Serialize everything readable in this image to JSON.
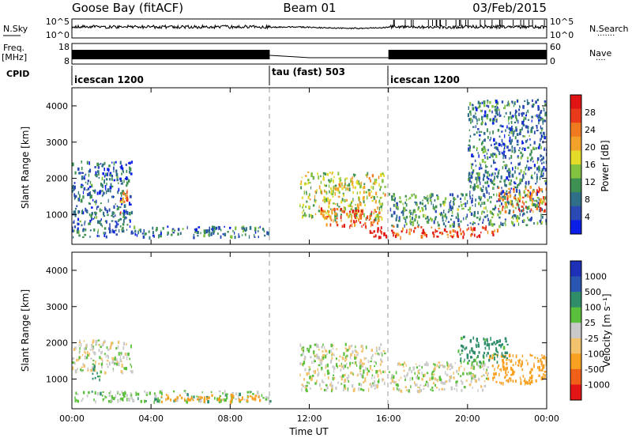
{
  "header": {
    "station": "Goose Bay (fitACF)",
    "beam": "Beam 01",
    "date": "03/Feb/2015"
  },
  "noise_panel": {
    "left_label": "N.Sky",
    "right_label": "N.Search",
    "right_dots": "·······",
    "left_ticks": [
      "10^5",
      "10^0"
    ],
    "right_ticks": [
      "10^5",
      "10^0"
    ]
  },
  "freq_panel": {
    "left_label_line1": "Freq.",
    "left_label_line2": "[MHz]",
    "right_label": "Nave",
    "right_dots": "····",
    "left_ticks": [
      "18",
      "8"
    ],
    "right_ticks": [
      "60",
      "0"
    ]
  },
  "cpid_panel": {
    "label": "CPID",
    "segments": [
      {
        "start": "00:00",
        "end": "10:00",
        "name": "icescan 1200"
      },
      {
        "start": "10:00",
        "end": "16:00",
        "name": "tau (fast) 503"
      },
      {
        "start": "16:00",
        "end": "24:00",
        "name": "icescan 1200"
      }
    ]
  },
  "colors": {
    "power_scale": [
      "#0b1ee8",
      "#2b49b4",
      "#2f6f87",
      "#3e9152",
      "#83c240",
      "#e3da2a",
      "#f2a12a",
      "#f07a1f",
      "#ea3a1c",
      "#e01414"
    ],
    "velocity_scale": [
      "#e41515",
      "#f06018",
      "#f7a021",
      "#f2c26d",
      "#c9c9c9",
      "#5abf3a",
      "#2f8d6a",
      "#2a55b0",
      "#1e2fb8"
    ]
  },
  "chart_data": [
    {
      "type": "heatmap",
      "title": "Power",
      "ylabel": "Slant Range [km]",
      "xlim": [
        "00:00",
        "24:00"
      ],
      "ylim": [
        180,
        4500
      ],
      "yticks": [
        "1000",
        "2000",
        "3000",
        "4000"
      ],
      "colorbar": {
        "label": "Power [dB]",
        "ticks": [
          "28",
          "24",
          "20",
          "16",
          "12",
          "8",
          "4"
        ]
      },
      "scatter_regions": [
        {
          "t_start": 0.0,
          "t_end": 10.0,
          "range_min": 400,
          "range_max": 700,
          "level": 6
        },
        {
          "t_start": 0.0,
          "t_end": 3.0,
          "range_min": 700,
          "range_max": 2500,
          "level": 5
        },
        {
          "t_start": 2.4,
          "t_end": 2.8,
          "range_min": 1000,
          "range_max": 1700,
          "level": 20
        },
        {
          "t_start": 11.5,
          "t_end": 15.8,
          "range_min": 900,
          "range_max": 2200,
          "level": 14
        },
        {
          "t_start": 12.5,
          "t_end": 15.5,
          "range_min": 700,
          "range_max": 1200,
          "level": 22
        },
        {
          "t_start": 15.0,
          "t_end": 16.0,
          "range_min": 400,
          "range_max": 700,
          "level": 28
        },
        {
          "t_start": 16.0,
          "t_end": 24.0,
          "range_min": 700,
          "range_max": 1600,
          "level": 8
        },
        {
          "t_start": 16.0,
          "t_end": 21.5,
          "range_min": 400,
          "range_max": 700,
          "level": 24
        },
        {
          "t_start": 21.5,
          "t_end": 24.0,
          "range_min": 1100,
          "range_max": 1800,
          "level": 22
        },
        {
          "t_start": 20.0,
          "t_end": 24.0,
          "range_min": 1600,
          "range_max": 4200,
          "level": 6
        }
      ]
    },
    {
      "type": "heatmap",
      "title": "Velocity",
      "xlabel": "Time UT",
      "ylabel": "Slant Range [km]",
      "xlim": [
        "00:00",
        "24:00"
      ],
      "ylim": [
        180,
        4500
      ],
      "xticks": [
        "00:00",
        "04:00",
        "08:00",
        "12:00",
        "16:00",
        "20:00",
        "00:00"
      ],
      "yticks": [
        "1000",
        "2000",
        "3000",
        "4000"
      ],
      "colorbar": {
        "label": "Velocity [m s⁻¹]",
        "ticks": [
          "1000",
          "500",
          "100",
          "25",
          "-25",
          "-100",
          "-500",
          "-1000"
        ]
      },
      "scatter_regions": [
        {
          "t_start": 0.0,
          "t_end": 3.0,
          "range_min": 1200,
          "range_max": 2100,
          "level": 0
        },
        {
          "t_start": 1.0,
          "t_end": 1.5,
          "range_min": 1000,
          "range_max": 1400,
          "level": 150
        },
        {
          "t_start": 0.0,
          "t_end": 10.0,
          "range_min": 400,
          "range_max": 700,
          "level": 50
        },
        {
          "t_start": 4.5,
          "t_end": 9.5,
          "range_min": 400,
          "range_max": 600,
          "level": -200
        },
        {
          "t_start": 11.5,
          "t_end": 15.8,
          "range_min": 700,
          "range_max": 2000,
          "level": 0
        },
        {
          "t_start": 16.0,
          "t_end": 21.0,
          "range_min": 700,
          "range_max": 1500,
          "level": 0
        },
        {
          "t_start": 21.0,
          "t_end": 24.0,
          "range_min": 900,
          "range_max": 1700,
          "level": -200
        },
        {
          "t_start": 19.5,
          "t_end": 22.0,
          "range_min": 1500,
          "range_max": 2200,
          "level": 150
        }
      ]
    }
  ]
}
